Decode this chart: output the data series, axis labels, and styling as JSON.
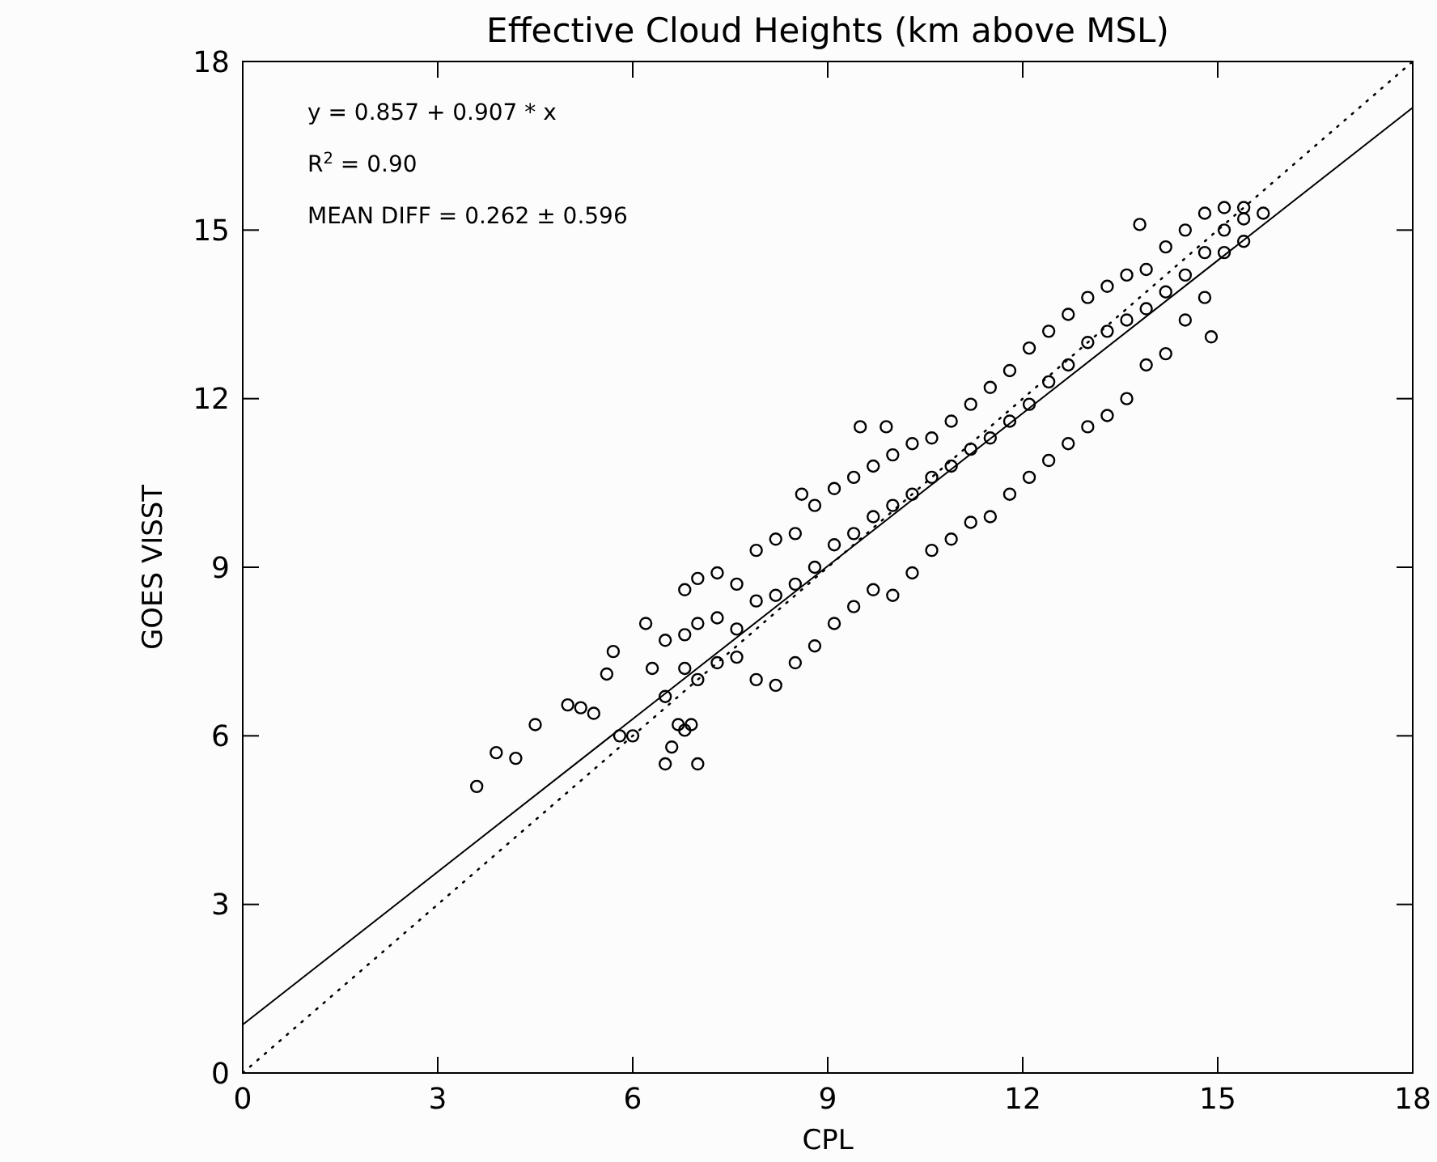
{
  "chart_data": {
    "type": "scatter",
    "title": "Effective Cloud Heights (km above MSL)",
    "xlabel": "CPL",
    "ylabel": "GOES VISST",
    "xlim": [
      0,
      18
    ],
    "ylim": [
      0,
      18
    ],
    "xticks": [
      0,
      3,
      6,
      9,
      12,
      15,
      18
    ],
    "yticks": [
      0,
      3,
      6,
      9,
      12,
      15,
      18
    ],
    "grid": false,
    "annotations": [
      "y = 0.857 + 0.907 * x",
      "R$^{2}$ = 0.90",
      "MEAN DIFF = 0.262 ± 0.596"
    ],
    "series": [
      {
        "color": "#000000",
        "marker": "circle",
        "x": [
          3.6,
          3.9,
          4.2,
          4.5,
          5.0,
          5.2,
          5.4,
          5.6,
          5.7,
          5.8,
          6.0,
          6.2,
          6.3,
          6.5,
          6.5,
          6.6,
          6.7,
          6.8,
          7.0,
          6.9,
          6.5,
          6.8,
          6.8,
          6.8,
          7.0,
          7.0,
          7.0,
          7.3,
          7.3,
          7.3,
          7.6,
          7.6,
          7.6,
          7.9,
          7.9,
          7.9,
          8.2,
          8.2,
          8.2,
          8.5,
          8.5,
          8.5,
          8.8,
          8.8,
          8.8,
          9.1,
          9.1,
          9.1,
          9.4,
          9.4,
          9.4,
          9.7,
          9.7,
          9.7,
          10.0,
          10.0,
          10.0,
          10.3,
          10.3,
          10.3,
          10.6,
          10.6,
          10.6,
          10.9,
          10.9,
          10.9,
          11.2,
          11.2,
          11.2,
          11.5,
          11.5,
          11.5,
          11.8,
          11.8,
          11.8,
          12.1,
          12.1,
          12.1,
          12.4,
          12.4,
          12.4,
          12.7,
          12.7,
          12.7,
          13.0,
          13.0,
          13.0,
          13.3,
          13.3,
          13.3,
          13.6,
          13.6,
          13.6,
          13.9,
          13.9,
          13.9,
          14.2,
          14.2,
          14.2,
          14.5,
          14.5,
          14.5,
          14.8,
          14.8,
          14.8,
          15.1,
          15.1,
          15.1,
          15.4,
          15.4,
          15.4,
          13.8,
          14.9,
          8.6,
          9.5,
          9.9,
          15.7
        ],
        "values": [
          5.1,
          5.7,
          5.6,
          6.2,
          6.55,
          6.5,
          6.4,
          7.1,
          7.5,
          6.0,
          6.0,
          8.0,
          7.2,
          6.7,
          5.5,
          5.8,
          6.2,
          6.1,
          5.5,
          6.2,
          7.7,
          8.6,
          7.8,
          7.2,
          8.8,
          8.0,
          7.0,
          8.9,
          8.1,
          7.3,
          8.7,
          7.9,
          7.4,
          9.3,
          8.4,
          7.0,
          9.5,
          8.5,
          6.9,
          9.6,
          8.7,
          7.3,
          10.1,
          9.0,
          7.6,
          10.4,
          9.4,
          8.0,
          10.6,
          9.6,
          8.3,
          10.8,
          9.9,
          8.6,
          11.0,
          10.1,
          8.5,
          11.2,
          10.3,
          8.9,
          11.3,
          10.6,
          9.3,
          11.6,
          10.8,
          9.5,
          11.9,
          11.1,
          9.8,
          12.2,
          11.3,
          9.9,
          12.5,
          11.6,
          10.3,
          12.9,
          11.9,
          10.6,
          13.2,
          12.3,
          10.9,
          13.5,
          12.6,
          11.2,
          13.8,
          13.0,
          11.5,
          14.0,
          13.2,
          11.7,
          14.2,
          13.4,
          12.0,
          14.3,
          13.6,
          12.6,
          14.7,
          13.9,
          12.8,
          15.0,
          14.2,
          13.4,
          15.3,
          14.6,
          13.8,
          15.4,
          15.0,
          14.6,
          15.4,
          15.2,
          14.8,
          15.1,
          13.1,
          10.3,
          11.5,
          11.5,
          15.3
        ]
      },
      {
        "type": "line",
        "color": "#000000",
        "line_style": "solid",
        "x": [
          0,
          18
        ],
        "values": [
          0.86,
          17.18
        ]
      },
      {
        "type": "line",
        "color": "#000000",
        "line_style": "dotted",
        "x": [
          0,
          18
        ],
        "values": [
          0,
          18
        ]
      }
    ]
  }
}
